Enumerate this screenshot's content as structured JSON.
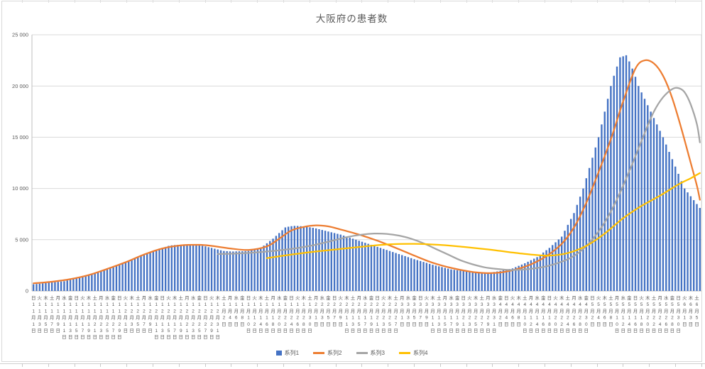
{
  "chart_data": {
    "type": "combo",
    "title": "大阪府の患者数",
    "ylim": [
      0,
      25000
    ],
    "y_tick_labels": [
      "0",
      "5 000",
      "10 000",
      "15 000",
      "20 000",
      "25 000"
    ],
    "grid": true,
    "legend_position": "bottom",
    "x_axis": {
      "note": "daily category axis from 11月1日 to 6月6日, tick labels shown every 2 days, vertical stacked text",
      "tick_labels": [
        [
          "日",
          "11月1日"
        ],
        [
          "火",
          "11月3日"
        ],
        [
          "木",
          "11月5日"
        ],
        [
          "土",
          "11月7日"
        ],
        [
          "月",
          "11月9日"
        ],
        [
          "水",
          "11月11日"
        ],
        [
          "金",
          "11月13日"
        ],
        [
          "日",
          "11月15日"
        ],
        [
          "火",
          "11月17日"
        ],
        [
          "木",
          "11月19日"
        ],
        [
          "土",
          "11月21日"
        ],
        [
          "月",
          "11月23日"
        ],
        [
          "水",
          "11月25日"
        ],
        [
          "金",
          "11月27日"
        ],
        [
          "日",
          "11月29日"
        ],
        [
          "火",
          "12月1日"
        ],
        [
          "木",
          "12月3日"
        ],
        [
          "土",
          "12月5日"
        ],
        [
          "月",
          "12月7日"
        ],
        [
          "水",
          "12月9日"
        ],
        [
          "金",
          "12月11日"
        ],
        [
          "日",
          "12月13日"
        ],
        [
          "火",
          "12月15日"
        ],
        [
          "木",
          "12月17日"
        ],
        [
          "土",
          "12月19日"
        ],
        [
          "月",
          "12月21日"
        ],
        [
          "水",
          "12月23日"
        ],
        [
          "金",
          "12月25日"
        ],
        [
          "日",
          "12月27日"
        ],
        [
          "火",
          "12月29日"
        ],
        [
          "木",
          "12月31日"
        ],
        [
          "土",
          "1月2日"
        ],
        [
          "月",
          "1月4日"
        ],
        [
          "水",
          "1月6日"
        ],
        [
          "金",
          "1月8日"
        ],
        [
          "日",
          "1月10日"
        ],
        [
          "火",
          "1月12日"
        ],
        [
          "木",
          "1月14日"
        ],
        [
          "土",
          "1月16日"
        ],
        [
          "月",
          "1月18日"
        ],
        [
          "水",
          "1月20日"
        ],
        [
          "金",
          "1月22日"
        ],
        [
          "日",
          "1月24日"
        ],
        [
          "火",
          "1月26日"
        ],
        [
          "木",
          "1月28日"
        ],
        [
          "土",
          "1月30日"
        ],
        [
          "月",
          "2月1日"
        ],
        [
          "水",
          "2月3日"
        ],
        [
          "金",
          "2月5日"
        ],
        [
          "日",
          "2月7日"
        ],
        [
          "火",
          "2月9日"
        ],
        [
          "木",
          "2月11日"
        ],
        [
          "土",
          "2月13日"
        ],
        [
          "月",
          "2月15日"
        ],
        [
          "水",
          "2月17日"
        ],
        [
          "金",
          "2月19日"
        ],
        [
          "日",
          "2月21日"
        ],
        [
          "火",
          "2月23日"
        ],
        [
          "木",
          "2月25日"
        ],
        [
          "土",
          "2月27日"
        ],
        [
          "月",
          "3月1日"
        ],
        [
          "水",
          "3月3日"
        ],
        [
          "金",
          "3月5日"
        ],
        [
          "日",
          "3月7日"
        ],
        [
          "火",
          "3月9日"
        ],
        [
          "木",
          "3月11日"
        ],
        [
          "土",
          "3月13日"
        ],
        [
          "月",
          "3月15日"
        ],
        [
          "水",
          "3月17日"
        ],
        [
          "金",
          "3月19日"
        ],
        [
          "日",
          "3月21日"
        ],
        [
          "火",
          "3月23日"
        ],
        [
          "木",
          "3月25日"
        ],
        [
          "土",
          "3月27日"
        ],
        [
          "月",
          "3月29日"
        ],
        [
          "水",
          "3月31日"
        ],
        [
          "金",
          "4月2日"
        ],
        [
          "日",
          "4月4日"
        ],
        [
          "火",
          "4月6日"
        ],
        [
          "木",
          "4月8日"
        ],
        [
          "土",
          "4月10日"
        ],
        [
          "月",
          "4月12日"
        ],
        [
          "水",
          "4月14日"
        ],
        [
          "金",
          "4月16日"
        ],
        [
          "日",
          "4月18日"
        ],
        [
          "火",
          "4月20日"
        ],
        [
          "木",
          "4月22日"
        ],
        [
          "土",
          "4月24日"
        ],
        [
          "月",
          "4月26日"
        ],
        [
          "水",
          "4月28日"
        ],
        [
          "金",
          "4月30日"
        ],
        [
          "日",
          "5月2日"
        ],
        [
          "火",
          "5月4日"
        ],
        [
          "木",
          "5月6日"
        ],
        [
          "土",
          "5月8日"
        ],
        [
          "月",
          "5月10日"
        ],
        [
          "水",
          "5月12日"
        ],
        [
          "金",
          "5月14日"
        ],
        [
          "日",
          "5月16日"
        ],
        [
          "火",
          "5月18日"
        ],
        [
          "木",
          "5月20日"
        ],
        [
          "土",
          "5月22日"
        ],
        [
          "月",
          "5月24日"
        ],
        [
          "水",
          "5月26日"
        ],
        [
          "金",
          "5月28日"
        ],
        [
          "日",
          "5月30日"
        ],
        [
          "火",
          "6月1日"
        ],
        [
          "木",
          "6月3日"
        ],
        [
          "土",
          "6月5日"
        ]
      ]
    },
    "series": [
      {
        "name": "系列1",
        "type": "bar",
        "color": "#4472C4",
        "values": [
          650,
          680,
          710,
          740,
          770,
          800,
          830,
          860,
          890,
          920,
          950,
          1025,
          1100,
          1175,
          1250,
          1325,
          1400,
          1475,
          1550,
          1625,
          1700,
          1800,
          1900,
          2000,
          2100,
          2200,
          2300,
          2425,
          2550,
          2675,
          2800,
          2930,
          3070,
          3200,
          3330,
          3470,
          3600,
          3700,
          3800,
          3900,
          4000,
          4100,
          4200,
          4300,
          4400,
          4450,
          4480,
          4500,
          4500,
          4480,
          4500,
          4520,
          4500,
          4470,
          4450,
          4400,
          4350,
          4270,
          4200,
          4120,
          4050,
          3970,
          3900,
          3880,
          3860,
          3850,
          3860,
          3870,
          3880,
          3890,
          3900,
          3975,
          4050,
          4125,
          4200,
          4425,
          4650,
          4875,
          5100,
          5375,
          5650,
          5925,
          6200,
          6270,
          6320,
          6350,
          6340,
          6320,
          6300,
          6260,
          6210,
          6160,
          6100,
          6025,
          5950,
          5875,
          5800,
          5725,
          5650,
          5575,
          5500,
          5400,
          5300,
          5200,
          5100,
          5000,
          4900,
          4800,
          4700,
          4600,
          4500,
          4400,
          4300,
          4200,
          4100,
          4000,
          3900,
          3800,
          3700,
          3600,
          3500,
          3400,
          3300,
          3200,
          3100,
          3010,
          2920,
          2830,
          2740,
          2640,
          2550,
          2475,
          2400,
          2325,
          2250,
          2175,
          2100,
          2060,
          2020,
          1980,
          1940,
          1890,
          1850,
          1830,
          1810,
          1790,
          1775,
          1760,
          1750,
          1800,
          1850,
          1900,
          1950,
          2010,
          2070,
          2140,
          2200,
          2325,
          2450,
          2575,
          2700,
          2850,
          3000,
          3150,
          3300,
          3525,
          3750,
          3975,
          4200,
          4475,
          4750,
          5025,
          5300,
          5875,
          6450,
          7025,
          7600,
          8400,
          9200,
          10000,
          11000,
          12000,
          13000,
          14000,
          15000,
          16250,
          17500,
          18750,
          20000,
          21000,
          21900,
          22800,
          22900,
          23000,
          22400,
          21700,
          20900,
          20000,
          19375,
          18750,
          18125,
          17500,
          16875,
          16250,
          15625,
          15000,
          14290,
          13570,
          12860,
          12140,
          11430,
          10710,
          10000,
          9620,
          9240,
          8860,
          8480,
          8100
        ]
      },
      {
        "name": "系列2",
        "type": "line",
        "color": "#ED7D31",
        "points": [
          [
            0,
            750
          ],
          [
            6,
            900
          ],
          [
            12,
            1150
          ],
          [
            18,
            1550
          ],
          [
            24,
            2150
          ],
          [
            30,
            2800
          ],
          [
            36,
            3550
          ],
          [
            42,
            4150
          ],
          [
            48,
            4450
          ],
          [
            54,
            4500
          ],
          [
            58,
            4400
          ],
          [
            64,
            4150
          ],
          [
            70,
            4000
          ],
          [
            76,
            4350
          ],
          [
            80,
            5100
          ],
          [
            84,
            5900
          ],
          [
            88,
            6250
          ],
          [
            92,
            6400
          ],
          [
            96,
            6300
          ],
          [
            100,
            6000
          ],
          [
            106,
            5500
          ],
          [
            112,
            4900
          ],
          [
            118,
            4200
          ],
          [
            124,
            3450
          ],
          [
            130,
            2750
          ],
          [
            136,
            2250
          ],
          [
            142,
            1900
          ],
          [
            147,
            1750
          ],
          [
            152,
            1800
          ],
          [
            157,
            2100
          ],
          [
            162,
            2600
          ],
          [
            167,
            3400
          ],
          [
            172,
            4600
          ],
          [
            176,
            6200
          ],
          [
            180,
            8600
          ],
          [
            184,
            11600
          ],
          [
            188,
            14800
          ],
          [
            192,
            18500
          ],
          [
            196,
            21700
          ],
          [
            199,
            22500
          ],
          [
            202,
            22200
          ],
          [
            205,
            21000
          ],
          [
            208,
            18800
          ],
          [
            211,
            15800
          ],
          [
            214,
            12500
          ],
          [
            216,
            10300
          ],
          [
            217,
            8900
          ]
        ]
      },
      {
        "name": "系列3",
        "type": "line",
        "color": "#A5A5A5",
        "points": [
          [
            60,
            3600
          ],
          [
            66,
            3650
          ],
          [
            72,
            3750
          ],
          [
            78,
            3900
          ],
          [
            84,
            4100
          ],
          [
            90,
            4400
          ],
          [
            96,
            4800
          ],
          [
            102,
            5250
          ],
          [
            107,
            5500
          ],
          [
            111,
            5600
          ],
          [
            115,
            5570
          ],
          [
            119,
            5400
          ],
          [
            123,
            5100
          ],
          [
            127,
            4650
          ],
          [
            131,
            4100
          ],
          [
            135,
            3550
          ],
          [
            139,
            3000
          ],
          [
            143,
            2600
          ],
          [
            147,
            2300
          ],
          [
            151,
            2150
          ],
          [
            155,
            2050
          ],
          [
            159,
            2080
          ],
          [
            163,
            2200
          ],
          [
            167,
            2400
          ],
          [
            171,
            2750
          ],
          [
            175,
            3250
          ],
          [
            179,
            4100
          ],
          [
            183,
            5400
          ],
          [
            187,
            7200
          ],
          [
            191,
            9600
          ],
          [
            195,
            12400
          ],
          [
            199,
            15400
          ],
          [
            202,
            17500
          ],
          [
            205,
            18900
          ],
          [
            208,
            19700
          ],
          [
            210,
            19800
          ],
          [
            212,
            19400
          ],
          [
            214,
            18200
          ],
          [
            216,
            16300
          ],
          [
            217,
            14500
          ]
        ]
      },
      {
        "name": "系列4",
        "type": "line",
        "color": "#FFC000",
        "points": [
          [
            76,
            3200
          ],
          [
            84,
            3550
          ],
          [
            92,
            3850
          ],
          [
            100,
            4100
          ],
          [
            108,
            4350
          ],
          [
            116,
            4550
          ],
          [
            124,
            4600
          ],
          [
            132,
            4500
          ],
          [
            140,
            4300
          ],
          [
            148,
            4050
          ],
          [
            156,
            3750
          ],
          [
            162,
            3550
          ],
          [
            168,
            3450
          ],
          [
            174,
            3700
          ],
          [
            180,
            4400
          ],
          [
            186,
            5600
          ],
          [
            192,
            7100
          ],
          [
            198,
            8300
          ],
          [
            204,
            9300
          ],
          [
            210,
            10400
          ],
          [
            214,
            11000
          ],
          [
            217,
            11500
          ]
        ]
      }
    ]
  }
}
